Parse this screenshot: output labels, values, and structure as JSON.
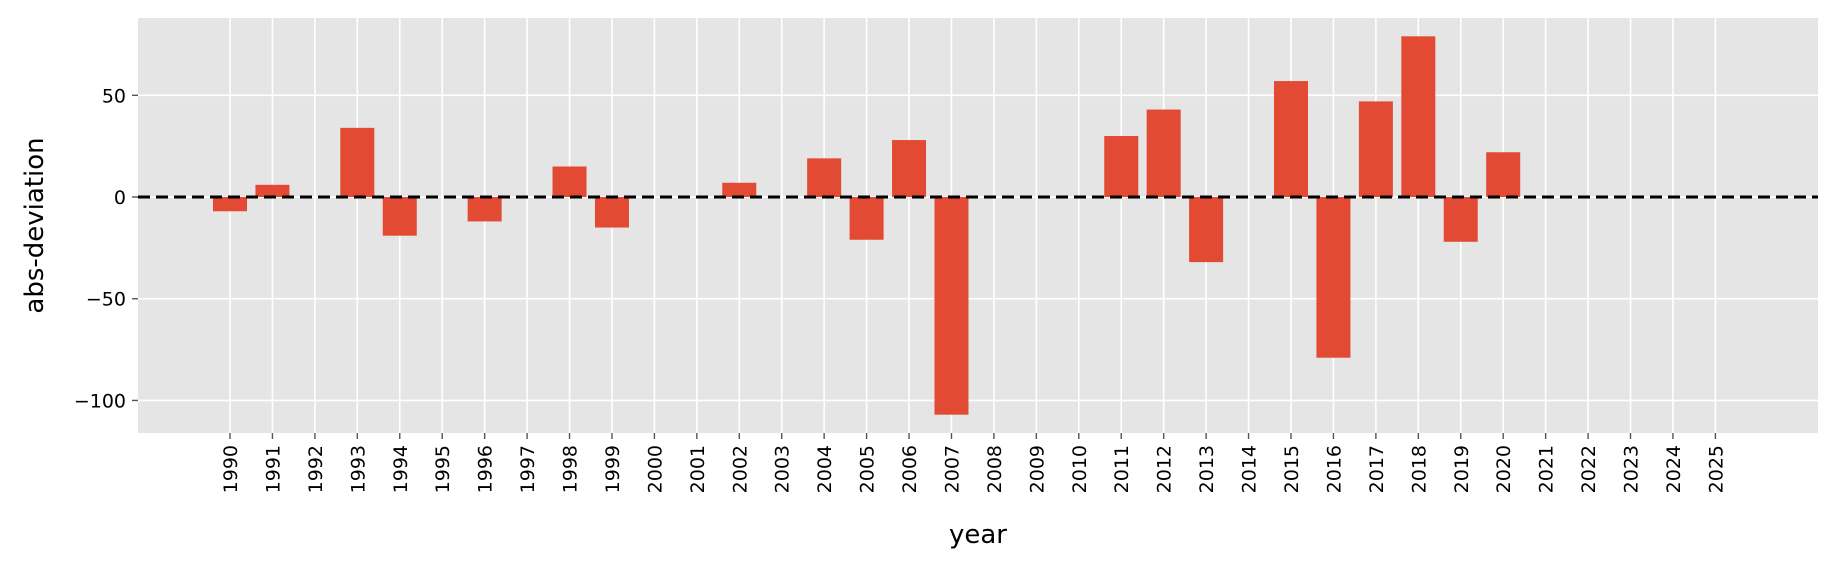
{
  "chart_data": {
    "type": "bar",
    "title": "",
    "xlabel": "year",
    "ylabel": "abs-deviation",
    "categories": [
      "1990",
      "1991",
      "1992",
      "1993",
      "1994",
      "1995",
      "1996",
      "1997",
      "1998",
      "1999",
      "2000",
      "2001",
      "2002",
      "2003",
      "2004",
      "2005",
      "2006",
      "2007",
      "2008",
      "2009",
      "2010",
      "2011",
      "2012",
      "2013",
      "2014",
      "2015",
      "2016",
      "2017",
      "2018",
      "2019",
      "2020",
      "2021",
      "2022",
      "2023",
      "2024",
      "2025"
    ],
    "values": [
      -7,
      6,
      0,
      34,
      -19,
      0,
      -12,
      0,
      15,
      -15,
      0,
      0,
      7,
      0,
      19,
      -21,
      28,
      -107,
      0,
      0,
      0,
      30,
      43,
      -32,
      0,
      57,
      -79,
      47,
      79,
      -22,
      22,
      0,
      0,
      0,
      0,
      0
    ],
    "ylim": [
      -116,
      88
    ],
    "yticks": [
      -100,
      -50,
      0,
      50
    ],
    "ytick_labels": [
      "−100",
      "−50",
      "0",
      "50"
    ],
    "reference_line": {
      "y": 0,
      "style": "dashed",
      "color": "#000000"
    },
    "grid": true,
    "legend": "none",
    "colors": {
      "bar": "#E24A33",
      "plot_background": "#E5E5E5",
      "grid": "#FFFFFF"
    }
  }
}
